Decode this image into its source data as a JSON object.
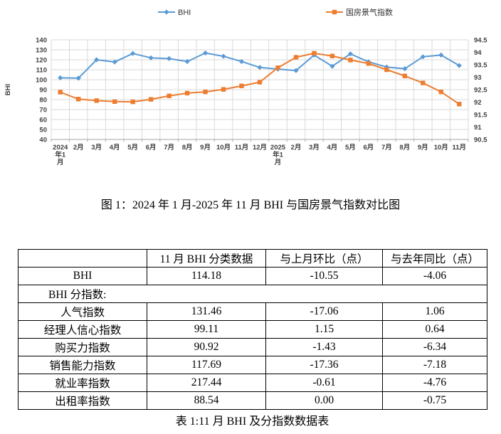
{
  "figure": {
    "legend": [
      {
        "label": "BHI"
      },
      {
        "label": "国房景气指数"
      }
    ]
  },
  "colors": {
    "bhi_series": "#5B9BD5",
    "index_series": "#ED7D31",
    "gridline": "#D9D9D9",
    "axis_line": "#A6A6A6",
    "axis_text": "#404040",
    "legend_text": "#333333"
  },
  "chart_data": [
    {
      "type": "line",
      "caption": "图 1：2024 年 1 月-2025 年 11 月 BHI 与国房景气指数对比图",
      "categories": [
        "2024年1月",
        "2月",
        "3月",
        "4月",
        "5月",
        "6月",
        "7月",
        "8月",
        "9月",
        "10月",
        "11月",
        "12月",
        "2025年1月",
        "2月",
        "3月",
        "4月",
        "5月",
        "6月",
        "7月",
        "8月",
        "9月",
        "10月",
        "11月"
      ],
      "series": [
        {
          "name": "BHI",
          "axis": "left",
          "color": "#5B9BD5",
          "marker": "diamond",
          "values": [
            101.9,
            101.5,
            120.0,
            117.8,
            126.3,
            121.9,
            121.2,
            118.2,
            126.8,
            123.5,
            118.24,
            112.3,
            110.6,
            109.2,
            124.7,
            113.5,
            125.9,
            117.9,
            112.7,
            111.0,
            123.0,
            124.73,
            114.18
          ]
        },
        {
          "name": "国房景气指数",
          "axis": "right",
          "color": "#ED7D31",
          "marker": "square",
          "values": [
            92.4,
            92.12,
            92.06,
            92.02,
            92.01,
            92.11,
            92.25,
            92.36,
            92.41,
            92.51,
            92.65,
            92.8,
            93.38,
            93.8,
            93.96,
            93.85,
            93.69,
            93.55,
            93.3,
            93.05,
            92.77,
            92.41,
            91.92
          ]
        }
      ],
      "left_axis": {
        "title": "BHI",
        "min": 40,
        "max": 140,
        "step": 10
      },
      "right_axis": {
        "min": 90.5,
        "max": 94.5,
        "step": 0.5
      },
      "grid": true,
      "legend_position": "top",
      "xlabel": "",
      "ylabel": "BHI"
    },
    {
      "type": "table",
      "caption": "表 1:11 月 BHI 及分指数数据表",
      "headers": [
        "",
        "11 月 BHI 分类数据",
        "与上月环比（点）",
        "与去年同比（点）"
      ],
      "section_row": "BHI 分指数:",
      "rows": [
        [
          "BHI",
          "114.18",
          "-10.55",
          "-4.06"
        ],
        [
          "人气指数",
          "131.46",
          "-17.06",
          "1.06"
        ],
        [
          "经理人信心指数",
          "99.11",
          "1.15",
          "0.64"
        ],
        [
          "购买力指数",
          "90.92",
          "-1.43",
          "-6.34"
        ],
        [
          "销售能力指数",
          "117.69",
          "-17.36",
          "-7.18"
        ],
        [
          "就业率指数",
          "217.44",
          "-0.61",
          "-4.76"
        ],
        [
          "出租率指数",
          "88.54",
          "0.00",
          "-0.75"
        ]
      ]
    }
  ]
}
